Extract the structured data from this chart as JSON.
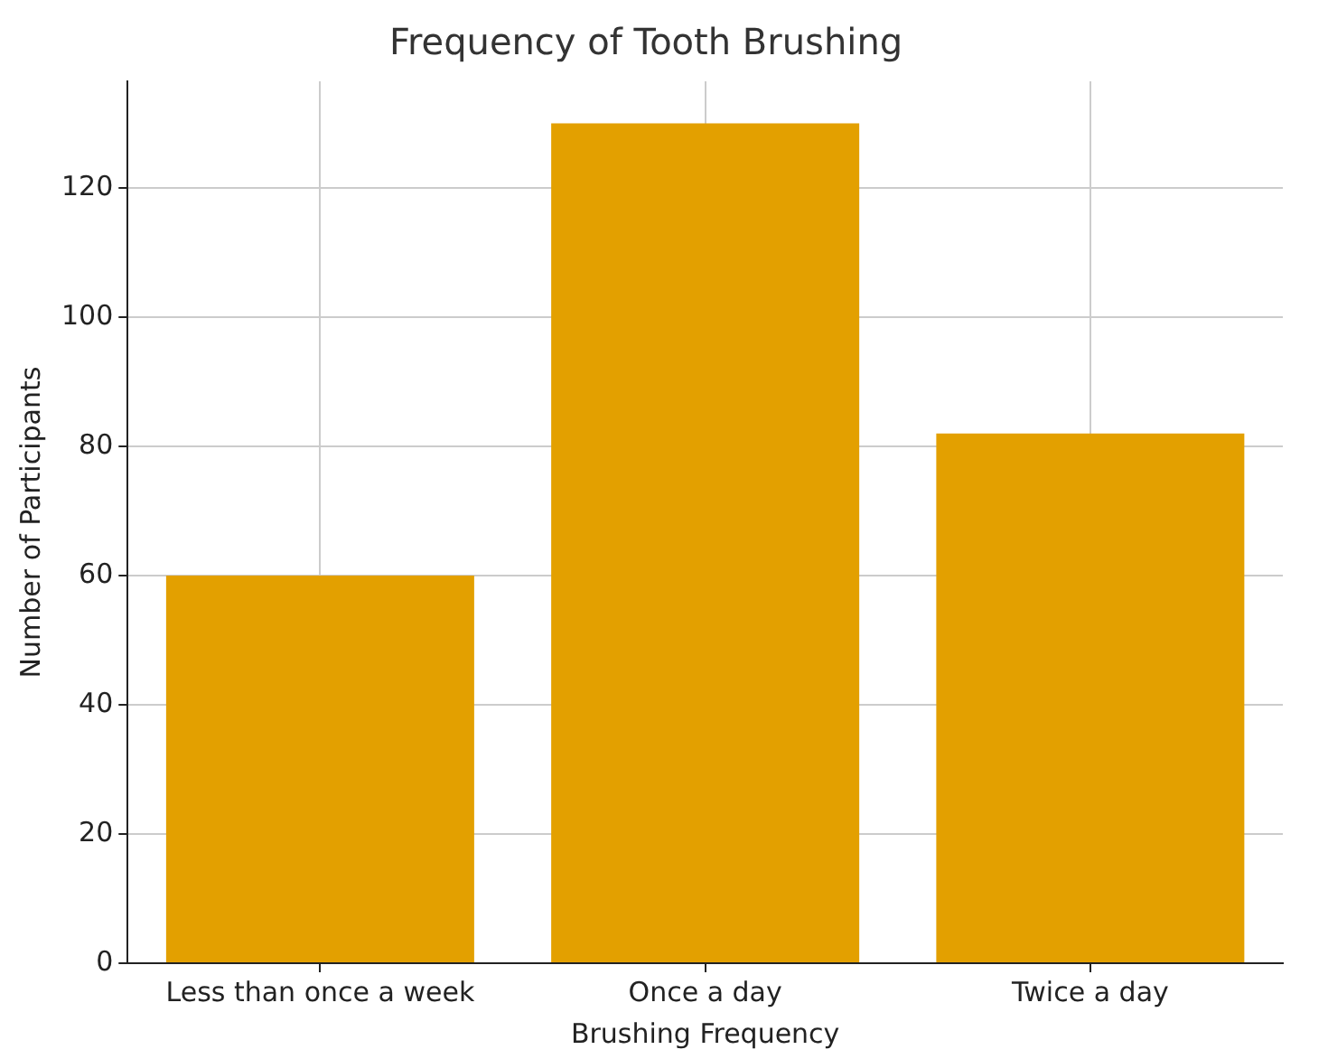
{
  "chart_data": {
    "type": "bar",
    "title": "Frequency of Tooth Brushing",
    "xlabel": "Brushing Frequency",
    "ylabel": "Number of Participants",
    "categories": [
      "Less than once a week",
      "Once a day",
      "Twice a day"
    ],
    "values": [
      60,
      130,
      82
    ],
    "color": "#e3a000",
    "ylim": [
      0,
      136.5
    ],
    "yticks": [
      0,
      20,
      40,
      60,
      80,
      100,
      120
    ],
    "grid": true
  }
}
